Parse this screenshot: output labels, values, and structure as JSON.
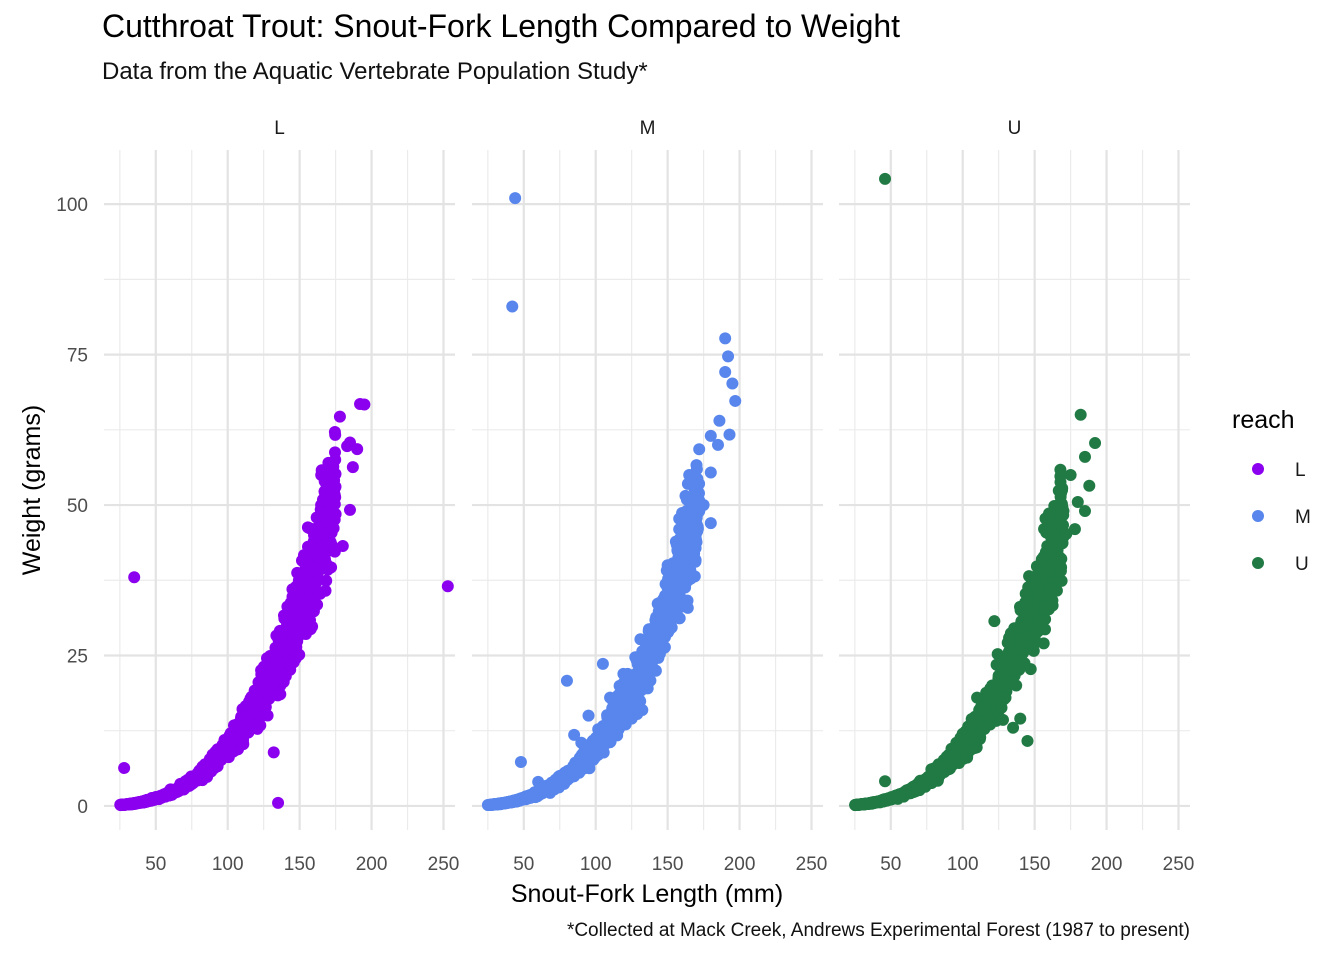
{
  "title": "Cutthroat Trout: Snout-Fork Length Compared to Weight",
  "subtitle": "Data from the Aquatic Vertebrate Population Study*",
  "caption": "*Collected at Mack Creek, Andrews Experimental Forest (1987 to present)",
  "chart_data": {
    "type": "scatter",
    "facet_by": "reach",
    "xlabel": "Snout-Fork Length (mm)",
    "ylabel": "Weight (grams)",
    "xlim": [
      14,
      258
    ],
    "ylim": [
      -4,
      109
    ],
    "x_ticks": [
      50,
      100,
      150,
      200,
      250
    ],
    "y_ticks": [
      0,
      25,
      50,
      75,
      100
    ],
    "grid": true,
    "legend": {
      "title": "reach",
      "position": "right",
      "labels": [
        "L",
        "M",
        "U"
      ]
    },
    "series": [
      {
        "name": "L",
        "color": "#8B00EE",
        "curve": {
          "a": 9.8e-06,
          "b": 3.0,
          "x_range": [
            25,
            175
          ]
        },
        "points": [
          [
            28,
            6.3
          ],
          [
            35,
            38
          ],
          [
            132,
            8.9
          ],
          [
            135,
            0.5
          ],
          [
            253,
            36.5
          ],
          [
            178,
            64.7
          ],
          [
            192,
            66.8
          ],
          [
            195,
            66.7
          ],
          [
            185,
            60.4
          ],
          [
            190,
            59.3
          ],
          [
            183,
            59.8
          ],
          [
            187,
            56.3
          ],
          [
            170,
            57
          ],
          [
            185,
            49.2
          ],
          [
            175,
            48.5
          ],
          [
            180,
            43.2
          ],
          [
            165,
            55
          ],
          [
            170,
            53
          ],
          [
            160,
            45
          ],
          [
            155,
            41
          ],
          [
            145,
            36
          ]
        ]
      },
      {
        "name": "M",
        "color": "#5886EC",
        "curve": {
          "a": 9.8e-06,
          "b": 3.0,
          "x_range": [
            25,
            172
          ]
        },
        "points": [
          [
            44,
            101
          ],
          [
            42,
            83
          ],
          [
            190,
            77.7
          ],
          [
            192,
            74.7
          ],
          [
            190,
            72.1
          ],
          [
            195,
            70.2
          ],
          [
            197,
            67.3
          ],
          [
            186,
            64
          ],
          [
            193,
            61.7
          ],
          [
            180,
            61.5
          ],
          [
            185,
            60
          ],
          [
            180,
            55.4
          ],
          [
            175,
            50
          ],
          [
            172,
            49
          ],
          [
            180,
            47
          ],
          [
            80,
            20.8
          ],
          [
            85,
            11.8
          ],
          [
            90,
            10.5
          ],
          [
            95,
            15
          ],
          [
            105,
            23.6
          ],
          [
            110,
            18
          ],
          [
            120,
            18.3
          ],
          [
            125,
            14.5
          ],
          [
            130,
            20
          ],
          [
            135,
            24
          ],
          [
            140,
            25
          ],
          [
            150,
            40
          ],
          [
            160,
            45
          ],
          [
            165,
            55
          ],
          [
            48,
            7.3
          ],
          [
            60,
            4
          ],
          [
            75,
            5
          ]
        ]
      },
      {
        "name": "U",
        "color": "#217A44",
        "curve": {
          "a": 9.8e-06,
          "b": 3.0,
          "x_range": [
            25,
            170
          ]
        },
        "points": [
          [
            46,
            104.2
          ],
          [
            182,
            65
          ],
          [
            192,
            60.3
          ],
          [
            185,
            58
          ],
          [
            175,
            55
          ],
          [
            188,
            53.2
          ],
          [
            180,
            50.5
          ],
          [
            170,
            49
          ],
          [
            185,
            49
          ],
          [
            160,
            48.6
          ],
          [
            165,
            49.5
          ],
          [
            178,
            46
          ],
          [
            172,
            45.2
          ],
          [
            160,
            42.8
          ],
          [
            155,
            41
          ],
          [
            122,
            30.7
          ],
          [
            128,
            14.3
          ],
          [
            140,
            14.5
          ],
          [
            145,
            10.8
          ],
          [
            135,
            13
          ],
          [
            46,
            4.1
          ],
          [
            100,
            12
          ],
          [
            110,
            18
          ],
          [
            150,
            38
          ],
          [
            145,
            34
          ]
        ]
      }
    ]
  }
}
